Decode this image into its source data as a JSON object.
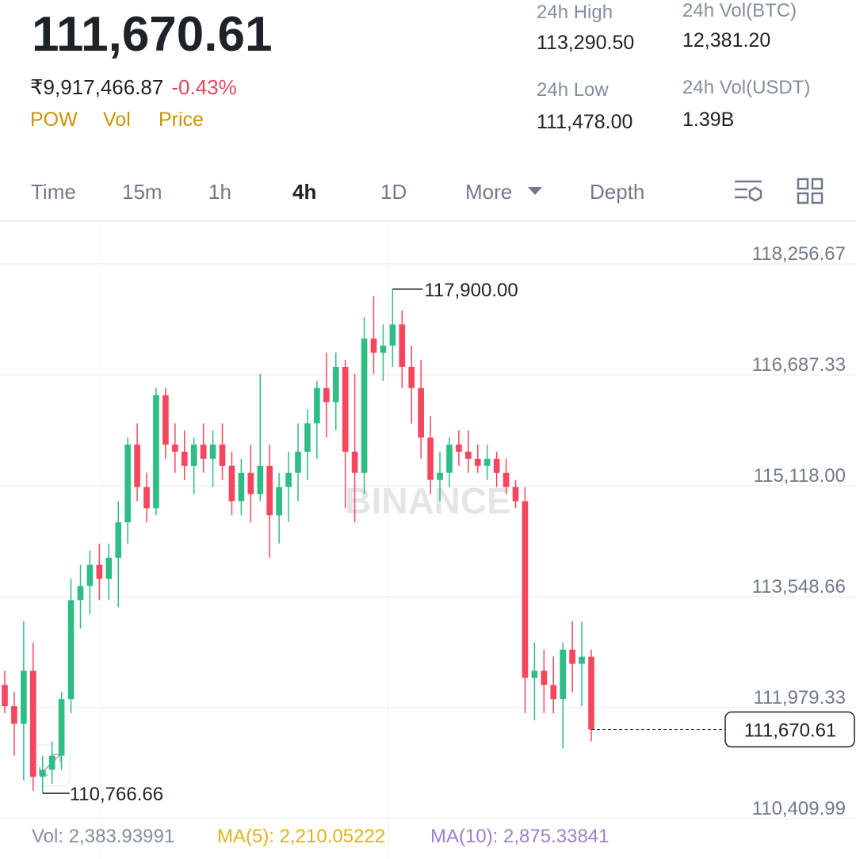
{
  "header": {
    "price": "111,670.61",
    "inr_price": "₹9,917,466.87",
    "change": "-0.43%",
    "indicators": [
      "POW",
      "Vol",
      "Price"
    ],
    "stats": [
      {
        "label": "24h High",
        "value": "113,290.50"
      },
      {
        "label": "24h Vol(BTC)",
        "value": "12,381.20"
      },
      {
        "label": "24h Low",
        "value": "111,478.00"
      },
      {
        "label": "24h Vol(USDT)",
        "value": "1.39B"
      }
    ]
  },
  "tabs": [
    "Time",
    "15m",
    "1h",
    "4h",
    "1D",
    "More",
    "Depth"
  ],
  "chart_data": {
    "type": "candlestick",
    "watermark": "BINANCE",
    "ylim": [
      110331,
      118851
    ],
    "yticks": [
      {
        "value": 118256.67,
        "label": "118,256.67"
      },
      {
        "value": 116687.33,
        "label": "116,687.33"
      },
      {
        "value": 115118,
        "label": "115,118.00"
      },
      {
        "value": 113548.66,
        "label": "113,548.66"
      },
      {
        "value": 111979.33,
        "label": "111,979.33"
      },
      {
        "value": 110409.99,
        "label": "110,409.99"
      }
    ],
    "high_marker": {
      "value": 117900,
      "label": "117,900.00"
    },
    "low_marker": {
      "value": 110766.66,
      "label": "110,766.66"
    },
    "last_price": {
      "value": 111670.61,
      "label": "111,670.61"
    },
    "up_color": "#2ebd85",
    "down_color": "#f6465d",
    "open": [
      112300,
      112000,
      111750,
      112500,
      111000,
      111100,
      111300,
      112100,
      113500,
      113700,
      114000,
      113800,
      114100,
      114600,
      115700,
      115100,
      114800,
      116400,
      115700,
      115600,
      115400,
      115700,
      115500,
      115700,
      115400,
      114900,
      115300,
      115000,
      115400,
      114700,
      115100,
      115300,
      115600,
      116000,
      116500,
      116300,
      116800,
      115600,
      115300,
      117200,
      117000,
      117100,
      117400,
      116800,
      116500,
      115800,
      115200,
      115300,
      115700,
      115600,
      115500,
      115400,
      115500,
      115300,
      115100,
      114900,
      112400,
      112500,
      112300,
      112100,
      112800,
      112600,
      112700
    ],
    "high": [
      112500,
      112200,
      113200,
      112900,
      111300,
      111500,
      112200,
      113800,
      114000,
      114200,
      114300,
      114300,
      114900,
      115800,
      116000,
      115300,
      116500,
      116500,
      116000,
      115900,
      115800,
      116000,
      115900,
      116000,
      115600,
      115500,
      115700,
      116700,
      115700,
      115300,
      115600,
      116000,
      116200,
      116600,
      117000,
      117000,
      116900,
      116700,
      117500,
      117800,
      117400,
      117900,
      117600,
      117100,
      116900,
      116100,
      115600,
      115800,
      115900,
      115900,
      115700,
      115700,
      115600,
      115500,
      115200,
      115100,
      112900,
      112800,
      112700,
      112900,
      113200,
      113200,
      112800
    ],
    "low": [
      111900,
      111300,
      110950,
      110800,
      110766.66,
      110900,
      111100,
      111900,
      113100,
      113300,
      113500,
      113500,
      113400,
      114300,
      114900,
      114600,
      114700,
      115500,
      115300,
      115200,
      115000,
      115300,
      115100,
      115200,
      114700,
      114700,
      114600,
      114900,
      114100,
      114300,
      114600,
      114900,
      115200,
      115500,
      115800,
      115900,
      114800,
      114600,
      115000,
      116700,
      116600,
      116800,
      116500,
      116000,
      115500,
      115000,
      114900,
      115100,
      115400,
      115300,
      115300,
      115200,
      115100,
      115000,
      114800,
      111900,
      111800,
      111900,
      111900,
      111400,
      112200,
      112000,
      111500
    ],
    "close": [
      112000,
      111750,
      112500,
      111000,
      111100,
      111300,
      112100,
      113500,
      113700,
      114000,
      113800,
      114100,
      114600,
      115700,
      115100,
      114800,
      116400,
      115700,
      115600,
      115400,
      115700,
      115500,
      115700,
      115400,
      114900,
      115300,
      115000,
      115400,
      114700,
      115100,
      115300,
      115600,
      116000,
      116500,
      116300,
      116800,
      115600,
      115300,
      117200,
      117000,
      117100,
      117400,
      116800,
      116500,
      115800,
      115200,
      115300,
      115700,
      115600,
      115500,
      115400,
      115500,
      115300,
      115100,
      114900,
      112400,
      112500,
      112300,
      112100,
      112800,
      112600,
      112700,
      111670.61
    ]
  },
  "footer": {
    "vol": "Vol: 2,383.93991",
    "ma5": "MA(5): 2,210.05222",
    "ma10": "MA(10): 2,875.33841"
  }
}
